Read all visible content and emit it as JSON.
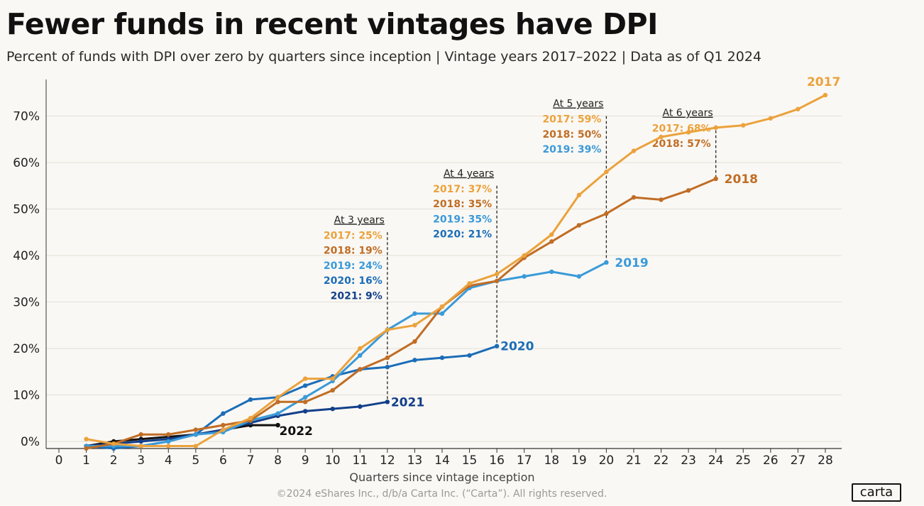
{
  "header": {
    "title": "Fewer funds in recent vintages have DPI",
    "subtitle": "Percent of funds with DPI over zero by quarters since inception | Vintage years 2017–2022 | Data as of Q1 2024"
  },
  "footer": {
    "copyright": "©2024 eShares Inc., d/b/a Carta Inc. (“Carta”). All rights reserved.",
    "logo": "carta"
  },
  "chart_data": {
    "type": "line",
    "xlabel": "Quarters since vintage inception",
    "ylabel": "",
    "xlim": [
      0,
      28
    ],
    "ylim": [
      -1.5,
      76
    ],
    "x_ticks": [
      "0",
      "1",
      "2",
      "3",
      "4",
      "5",
      "6",
      "7",
      "8",
      "9",
      "10",
      "11",
      "12",
      "13",
      "14",
      "15",
      "16",
      "17",
      "18",
      "19",
      "20",
      "21",
      "22",
      "23",
      "24",
      "25",
      "26",
      "27",
      "28"
    ],
    "y_ticks": [
      {
        "value": 0,
        "label": "0%"
      },
      {
        "value": 10,
        "label": "10%"
      },
      {
        "value": 20,
        "label": "20%"
      },
      {
        "value": 30,
        "label": "30%"
      },
      {
        "value": 40,
        "label": "40%"
      },
      {
        "value": 50,
        "label": "50%"
      },
      {
        "value": 60,
        "label": "60%"
      },
      {
        "value": 70,
        "label": "70%"
      }
    ],
    "grid": true,
    "legend": "none",
    "series": [
      {
        "name": "2017",
        "color": "#eba23c",
        "x": [
          1,
          2,
          3,
          4,
          5,
          6,
          7,
          8,
          9,
          10,
          11,
          12,
          13,
          14,
          15,
          16,
          17,
          18,
          19,
          20,
          21,
          22,
          23,
          24,
          25,
          26,
          27,
          28
        ],
        "y": [
          0.5,
          -0.5,
          -1,
          -1,
          -1,
          2.5,
          5,
          9.5,
          13.5,
          13.5,
          20,
          24,
          25,
          29,
          34,
          36,
          40,
          44.5,
          53,
          58,
          62.5,
          65.5,
          66.5,
          67.5,
          68,
          69.5,
          71.5,
          74.5
        ]
      },
      {
        "name": "2018",
        "color": "#c06d25",
        "x": [
          1,
          2,
          3,
          4,
          5,
          6,
          7,
          8,
          9,
          10,
          11,
          12,
          13,
          14,
          15,
          16,
          17,
          18,
          19,
          20,
          21,
          22,
          23,
          24
        ],
        "y": [
          -1.5,
          -0.5,
          1.5,
          1.5,
          2.5,
          3.5,
          4.5,
          8.5,
          8.5,
          11,
          15.5,
          18,
          21.5,
          29,
          33.5,
          34.5,
          39.5,
          43,
          46.5,
          49,
          52.5,
          52,
          54,
          56.5
        ]
      },
      {
        "name": "2019",
        "color": "#3a9ad9",
        "x": [
          1,
          2,
          3,
          4,
          5,
          6,
          7,
          8,
          9,
          10,
          11,
          12,
          13,
          14,
          15,
          16,
          17,
          18,
          19,
          20
        ],
        "y": [
          -1,
          -1,
          -1,
          0,
          1.5,
          2,
          4.5,
          6,
          9.5,
          13,
          18.5,
          24,
          27.5,
          27.5,
          33,
          34.5,
          35.5,
          36.5,
          35.5,
          38.5
        ]
      },
      {
        "name": "2020",
        "color": "#1b6db8",
        "x": [
          1,
          2,
          3,
          4,
          5,
          6,
          7,
          8,
          9,
          10,
          11,
          12,
          13,
          14,
          15,
          16
        ],
        "y": [
          -1,
          -1.5,
          -1,
          0,
          1.5,
          6,
          9,
          9.5,
          12,
          14,
          15.5,
          16,
          17.5,
          18,
          18.5,
          20.5
        ]
      },
      {
        "name": "2021",
        "color": "#123f8a",
        "x": [
          1,
          2,
          3,
          4,
          5,
          6,
          7,
          8,
          9,
          10,
          11,
          12
        ],
        "y": [
          -1,
          -0.5,
          0,
          0.5,
          1.5,
          2.5,
          4,
          5.5,
          6.5,
          7,
          7.5,
          8.5
        ]
      },
      {
        "name": "2022",
        "color": "#111111",
        "x": [
          1,
          2,
          3,
          4,
          5,
          6,
          7,
          8
        ],
        "y": [
          -1,
          0,
          0.5,
          1,
          1.5,
          2.5,
          3.5,
          3.5
        ]
      }
    ],
    "annotations": [
      {
        "x": 12,
        "y_top": 45,
        "y_bottom": 8.5,
        "title": "At 3 years",
        "lines": [
          {
            "text": "2017: 25%",
            "series": "2017"
          },
          {
            "text": "2018: 19%",
            "series": "2018"
          },
          {
            "text": "2019: 24%",
            "series": "2019"
          },
          {
            "text": "2020: 16%",
            "series": "2020"
          },
          {
            "text": "2021: 9%",
            "series": "2021"
          }
        ]
      },
      {
        "x": 16,
        "y_top": 55,
        "y_bottom": 20.5,
        "title": "At 4 years",
        "lines": [
          {
            "text": "2017: 37%",
            "series": "2017"
          },
          {
            "text": "2018: 35%",
            "series": "2018"
          },
          {
            "text": "2019: 35%",
            "series": "2019"
          },
          {
            "text": "2020: 21%",
            "series": "2020"
          }
        ]
      },
      {
        "x": 20,
        "y_top": 70,
        "y_bottom": 38.5,
        "title": "At 5 years",
        "lines": [
          {
            "text": "2017: 59%",
            "series": "2017"
          },
          {
            "text": "2018: 50%",
            "series": "2018"
          },
          {
            "text": "2019: 39%",
            "series": "2019"
          }
        ]
      },
      {
        "x": 24,
        "y_top": 68,
        "y_bottom": 56.5,
        "title": "At 6 years",
        "lines": [
          {
            "text": "2017: 68%",
            "series": "2017"
          },
          {
            "text": "2018: 57%",
            "series": "2018"
          }
        ]
      }
    ]
  }
}
